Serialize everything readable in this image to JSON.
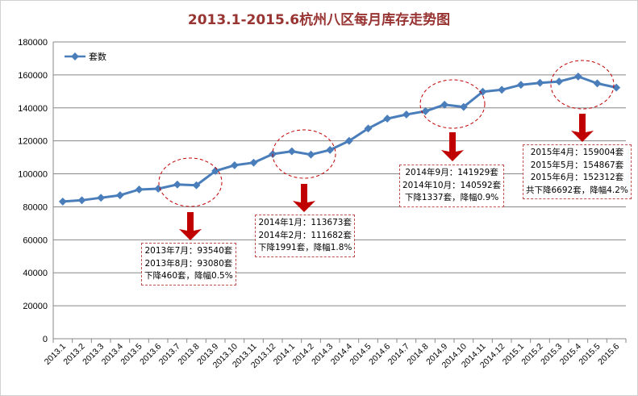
{
  "chart_data": {
    "type": "line",
    "title": "2013.1-2015.6杭州八区每月库存走势图",
    "xlabel": "",
    "ylabel": "",
    "ylim": [
      0,
      180000
    ],
    "yticks": [
      0,
      20000,
      40000,
      60000,
      80000,
      100000,
      120000,
      140000,
      160000,
      180000
    ],
    "grid": true,
    "legend": "top-left",
    "categories": [
      "2013.1",
      "2013.2",
      "2013.3",
      "2013.4",
      "2013.5",
      "2013.6",
      "2013.7",
      "2013.8",
      "2013.9",
      "2013.10",
      "2013.11",
      "2013.12",
      "2014.1",
      "2014.2",
      "2014.3",
      "2014.4",
      "2014.5",
      "2014.6",
      "2014.7",
      "2014.8",
      "2014.9",
      "2014.10",
      "2014.11",
      "2014.12",
      "2015.1",
      "2015.2",
      "2015.3",
      "2015.4",
      "2015.5",
      "2015.6"
    ],
    "series": [
      {
        "name": "套数",
        "color": "#4a7ebb",
        "values": [
          83200,
          84000,
          85500,
          87000,
          90500,
          91000,
          93540,
          93080,
          101800,
          105200,
          106800,
          112000,
          113673,
          111682,
          114500,
          120000,
          127500,
          133500,
          136000,
          138000,
          141929,
          140592,
          149800,
          151000,
          154000,
          155200,
          156000,
          159004,
          154867,
          152312
        ]
      }
    ],
    "highlight_color": "#c00000",
    "annotations": [
      {
        "lines": [
          "2013年7月：93540套",
          "2013年8月：93080套",
          "下降460套，降幅0.5%"
        ]
      },
      {
        "lines": [
          "2014年1月：113673套",
          "2014年2月：111682套",
          "下降1991套，降幅1.8%"
        ]
      },
      {
        "lines": [
          "2014年9月：141929套",
          "2014年10月：140592套",
          "下降1337套，降幅0.9%"
        ]
      },
      {
        "lines": [
          "2015年4月：159004套",
          "2015年5月：154867套",
          "2015年6月：152312套",
          "共下降6692套，降幅4.2%"
        ]
      }
    ]
  }
}
